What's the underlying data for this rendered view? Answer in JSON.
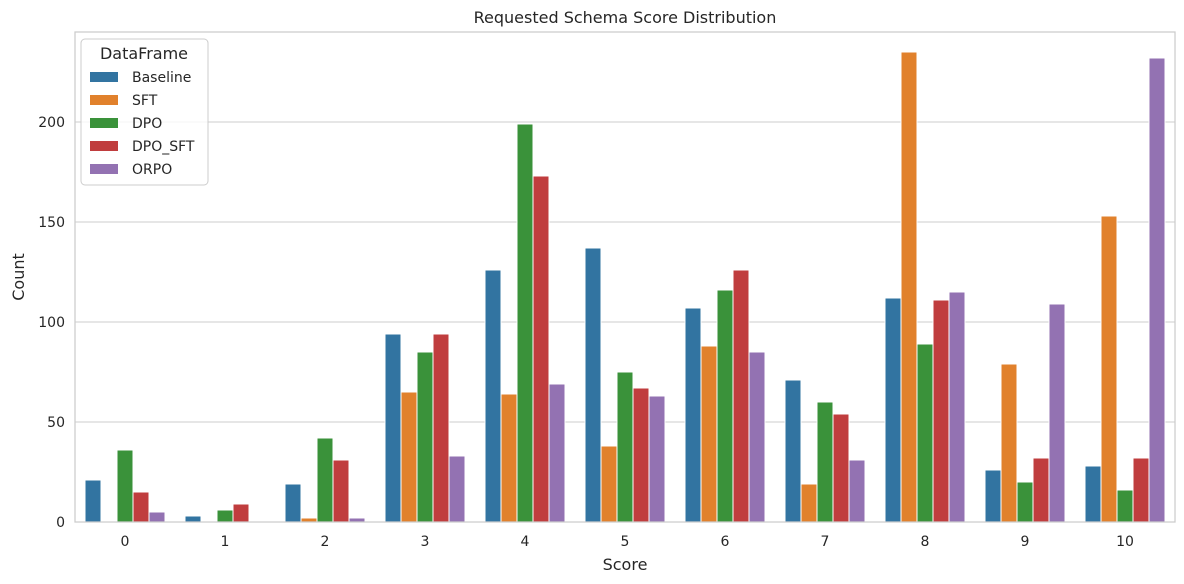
{
  "chart_data": {
    "type": "bar",
    "title": "Requested Schema Score Distribution",
    "xlabel": "Score",
    "ylabel": "Count",
    "ylim": [
      0,
      245
    ],
    "yticks": [
      0,
      50,
      100,
      150,
      200
    ],
    "grid": "y",
    "legend": {
      "title": "DataFrame",
      "placement": "top-left"
    },
    "categories": [
      "0",
      "1",
      "2",
      "3",
      "4",
      "5",
      "6",
      "7",
      "8",
      "9",
      "10"
    ],
    "series": [
      {
        "name": "Baseline",
        "color": "#3274a1",
        "values": [
          21,
          3,
          19,
          94,
          126,
          137,
          107,
          71,
          112,
          26,
          28
        ]
      },
      {
        "name": "SFT",
        "color": "#e1812c",
        "values": [
          0,
          0,
          2,
          65,
          64,
          38,
          88,
          19,
          235,
          79,
          153
        ]
      },
      {
        "name": "DPO",
        "color": "#3a923a",
        "values": [
          36,
          6,
          42,
          85,
          199,
          75,
          116,
          60,
          89,
          20,
          16
        ]
      },
      {
        "name": "DPO_SFT",
        "color": "#c03d3e",
        "values": [
          15,
          9,
          31,
          94,
          173,
          67,
          126,
          54,
          111,
          32,
          32
        ]
      },
      {
        "name": "ORPO",
        "color": "#9372b2",
        "values": [
          5,
          0,
          2,
          33,
          69,
          63,
          85,
          31,
          115,
          109,
          232
        ]
      }
    ]
  }
}
